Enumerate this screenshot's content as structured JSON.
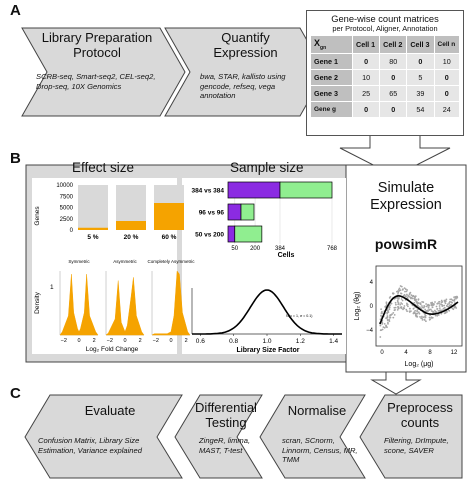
{
  "panels": {
    "a": "A",
    "b": "B",
    "c": "C"
  },
  "panel_a": {
    "box1": {
      "title": "Library Preparation Protocol",
      "sub": "SCRB-seq, Smart-seq2, CEL-seq2, Drop-seq, 10X Genomics"
    },
    "box2": {
      "title": "Quantify Expression",
      "sub": "bwa, STAR, kallisto using gencode, refseq, vega annotation"
    },
    "matrix": {
      "title": "Gene-wise count matrices",
      "subtitle": "per Protocol, Aligner, Annotation",
      "corner_main": "X",
      "corner_sub": "gn",
      "cols": [
        "Cell 1",
        "Cell 2",
        "Cell 3",
        "Cell n"
      ],
      "rows": [
        {
          "label": "Gene 1",
          "vals": [
            "0",
            "80",
            "0",
            "10"
          ]
        },
        {
          "label": "Gene 2",
          "vals": [
            "10",
            "0",
            "5",
            "0"
          ]
        },
        {
          "label": "Gene 3",
          "vals": [
            "25",
            "65",
            "39",
            "0"
          ]
        },
        {
          "label": "Gene g",
          "vals": [
            "0",
            "0",
            "54",
            "24"
          ]
        }
      ]
    }
  },
  "panel_b": {
    "effect_title": "Effect size",
    "sample_title": "Sample size",
    "colors": {
      "orange": "#f5a300",
      "purple": "#8b2be2",
      "green": "#90ee90",
      "grey": "#d9d9d9"
    },
    "genes_chart": {
      "ylabel": "Genes",
      "yticks": [
        "10000",
        "7500",
        "5000",
        "2500",
        "0"
      ],
      "ymax": 10000,
      "categories": [
        "5 %",
        "20 %",
        "60 %"
      ],
      "de_values": [
        500,
        2000,
        6000
      ]
    },
    "density": {
      "ylabel": "Density",
      "xlabel": "Log₂ Fold Change",
      "ytick": "1",
      "panels": [
        {
          "title": "Symmetric",
          "xticks": [
            "−2",
            "0",
            "2"
          ]
        },
        {
          "title": "Asymmetric",
          "xticks": [
            "−2",
            "0",
            "2"
          ]
        },
        {
          "title": "Completely Asymmetric",
          "xticks": [
            "−2",
            "0",
            "2"
          ]
        }
      ]
    },
    "sample_chart": {
      "xlabel": "Cells",
      "xticks": [
        50,
        200,
        384,
        768
      ],
      "xmax": 768,
      "rows": [
        {
          "label": "384 vs 384",
          "a": 384,
          "b": 384
        },
        {
          "label": "96 vs 96",
          "a": 96,
          "b": 96
        },
        {
          "label": "50 vs 200",
          "a": 50,
          "b": 200
        }
      ]
    },
    "lsf_chart": {
      "xlabel": "Library Size Factor",
      "xticks": [
        "0.6",
        "0.8",
        "1.0",
        "1.2",
        "1.4"
      ],
      "annotation": "N(μ = 1, σ = 0.1)",
      "mu": 1.0,
      "sigma": 0.1,
      "xmin": 0.55,
      "xmax": 1.45
    }
  },
  "simulate": {
    "title": "Simulate Expression",
    "pkg": "powsimR",
    "ylabel": "Log₂ (θg)",
    "xlabel": "Log₂ (μg)",
    "yticks": [
      "4",
      "0",
      "−4"
    ],
    "xticks": [
      "0",
      "4",
      "8",
      "12"
    ]
  },
  "panel_c": {
    "boxes": [
      {
        "title": "Evaluate",
        "sub": "Confusion Matrix, Library Size Estimation, Variance explained"
      },
      {
        "title": "Differential Testing",
        "sub": "ZingeR, limma, MAST, T-test"
      },
      {
        "title": "Normalise",
        "sub": "scran, SCnorm, Linnorm, Census, MR, TMM"
      },
      {
        "title": "Preprocess counts",
        "sub": "Filtering, DrImpute, scone, SAVER"
      }
    ]
  }
}
